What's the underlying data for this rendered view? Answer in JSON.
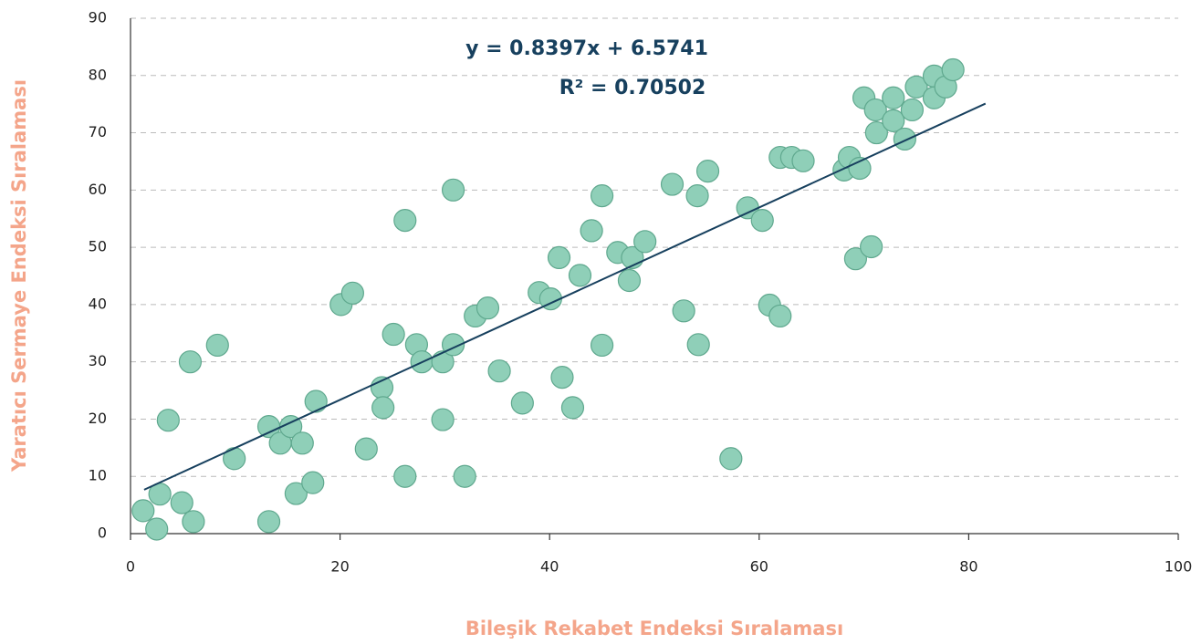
{
  "chart_data": {
    "type": "scatter",
    "x_label": "Bileşik Rekabet Endeksi Sıralaması",
    "y_label": "Yaratıcı Sermaye Endeksi Sıralaması",
    "annotations": [
      "y = 0.8397x + 6.5741",
      "R² = 0.70502"
    ],
    "trendline": {
      "slope": 0.8397,
      "intercept": 6.5741,
      "x": [
        1.3,
        81.6
      ],
      "color": "#17405e"
    },
    "color": "#8fcfb8",
    "xlim": [
      0,
      100
    ],
    "xticks": [
      0,
      20,
      40,
      60,
      80,
      100
    ],
    "ylim": [
      0,
      90
    ],
    "yticks": [
      0,
      10,
      20,
      30,
      40,
      50,
      60,
      70,
      80,
      90
    ],
    "grid": true,
    "x": [
      1.2,
      2.5,
      2.8,
      3.6,
      4.9,
      5.7,
      6.0,
      8.3,
      9.9,
      13.2,
      13.2,
      14.3,
      15.3,
      15.8,
      16.4,
      17.4,
      17.7,
      20.1,
      21.2,
      22.5,
      24.0,
      24.1,
      25.1,
      26.2,
      26.2,
      27.3,
      27.8,
      29.8,
      29.8,
      30.8,
      30.8,
      31.9,
      32.9,
      34.1,
      35.2,
      37.4,
      39.0,
      40.1,
      40.9,
      41.2,
      42.2,
      42.9,
      44.0,
      45.0,
      45.0,
      46.5,
      47.6,
      47.9,
      49.1,
      51.7,
      52.8,
      54.1,
      54.2,
      55.1,
      57.3,
      58.9,
      60.3,
      61.0,
      62.0,
      62.0,
      63.1,
      64.2,
      68.1,
      68.6,
      69.2,
      69.6,
      70.0,
      70.7,
      71.1,
      71.2,
      72.8,
      72.8,
      73.9,
      74.6,
      75.0,
      76.7,
      76.7,
      77.8,
      78.5
    ],
    "values": [
      4.0,
      0.8,
      6.9,
      19.8,
      5.4,
      30,
      2.1,
      32.9,
      13.1,
      2.1,
      18.7,
      15.8,
      18.7,
      7.0,
      15.8,
      8.9,
      23.1,
      40,
      42,
      14.8,
      25.5,
      22.0,
      34.8,
      54.7,
      10.0,
      33.0,
      30.0,
      30.0,
      19.9,
      33.0,
      60,
      10.0,
      38.0,
      39.4,
      28.4,
      22.8,
      42.1,
      41.0,
      48.2,
      27.3,
      22.0,
      45.1,
      52.9,
      59.0,
      32.9,
      49.1,
      44.2,
      48.2,
      51.0,
      61.0,
      38.9,
      59.0,
      33.0,
      63.3,
      13.1,
      56.9,
      54.7,
      39.9,
      65.7,
      38.0,
      65.7,
      65.1,
      63.5,
      65.7,
      48.0,
      63.8,
      76.1,
      50.1,
      74.0,
      70.0,
      76.1,
      72.1,
      68.9,
      74.0,
      78.0,
      79.9,
      76.1,
      78.0,
      81.0
    ]
  }
}
